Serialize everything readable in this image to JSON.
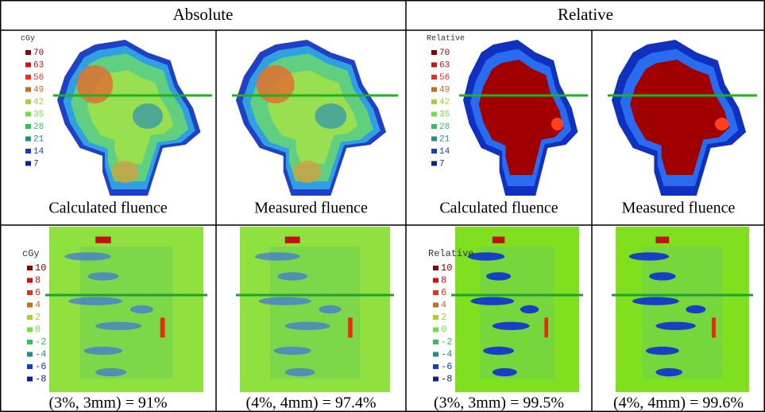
{
  "headers": [
    "Absolute",
    "Relative"
  ],
  "rows": [
    {
      "cells": [
        {
          "caption": "Calculated fluence",
          "legend": {
            "title": "cGy",
            "labels": [
              "70",
              "63",
              "56",
              "49",
              "42",
              "35",
              "28",
              "21",
              "14",
              "7"
            ]
          }
        },
        {
          "caption": "Measured fluence"
        },
        {
          "caption": "Calculated fluence",
          "legend": {
            "title": "Relative",
            "labels": [
              "70",
              "63",
              "56",
              "49",
              "42",
              "35",
              "28",
              "21",
              "14",
              "7"
            ]
          }
        },
        {
          "caption": "Measured fluence"
        }
      ]
    },
    {
      "cells": [
        {
          "caption": "(3%, 3mm) = 91%",
          "legend": {
            "title": "cGy",
            "labels": [
              "10",
              "8",
              "6",
              "4",
              "2",
              "0",
              "-2",
              "-4",
              "-6",
              "-8"
            ]
          }
        },
        {
          "caption": "(4%, 4mm) = 97.4%"
        },
        {
          "caption": "(3%, 3mm) = 99.5%",
          "legend": {
            "title": "Relative",
            "labels": [
              "10",
              "8",
              "6",
              "4",
              "2",
              "0",
              "-2",
              "-4",
              "-6",
              "-8"
            ]
          }
        },
        {
          "caption": "(4%, 4mm) = 99.6%"
        }
      ]
    }
  ]
}
